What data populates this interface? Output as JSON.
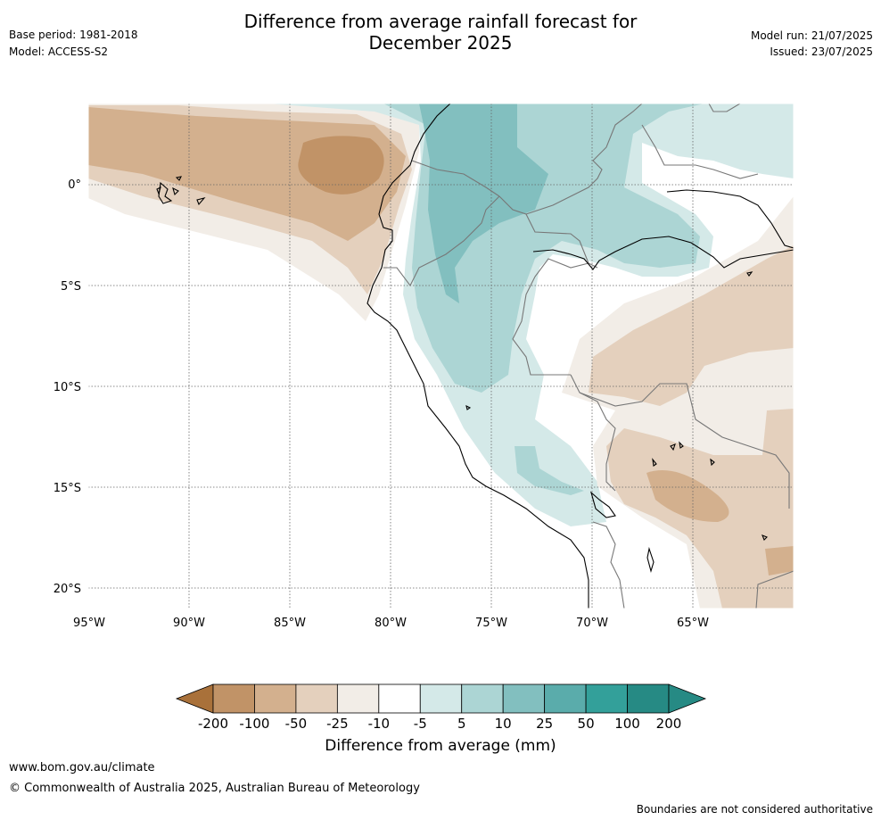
{
  "header": {
    "title_line1": "Difference from average rainfall forecast for",
    "title_line2": "December 2025",
    "base_period": "Base period: 1981-2018",
    "model": "Model: ACCESS-S2",
    "model_run": "Model run: 21/07/2025",
    "issued": "Issued: 23/07/2025"
  },
  "map": {
    "lat_labels": [
      "0°",
      "5°S",
      "10°S",
      "15°S",
      "20°S"
    ],
    "lon_labels": [
      "95°W",
      "90°W",
      "85°W",
      "80°W",
      "75°W",
      "70°W",
      "65°W"
    ],
    "lat_range": [
      -21,
      4
    ],
    "lon_range": [
      -95,
      -60
    ]
  },
  "colorbar": {
    "label": "Difference from average (mm)",
    "ticks": [
      "-200",
      "-100",
      "-50",
      "-25",
      "-10",
      "-5",
      "5",
      "10",
      "25",
      "50",
      "100",
      "200"
    ],
    "colors": [
      "#a9713a",
      "#c19367",
      "#d3b08e",
      "#e4d0bd",
      "#f2ede7",
      "#ffffff",
      "#d4e9e8",
      "#acd5d4",
      "#82bfbf",
      "#5aacab",
      "#33a09a",
      "#268a84"
    ]
  },
  "footer": {
    "website": "www.bom.gov.au/climate",
    "copyright": "© Commonwealth of Australia 2025, Australian Bureau of Meteorology",
    "disclaimer": "Boundaries are not considered authoritative"
  }
}
